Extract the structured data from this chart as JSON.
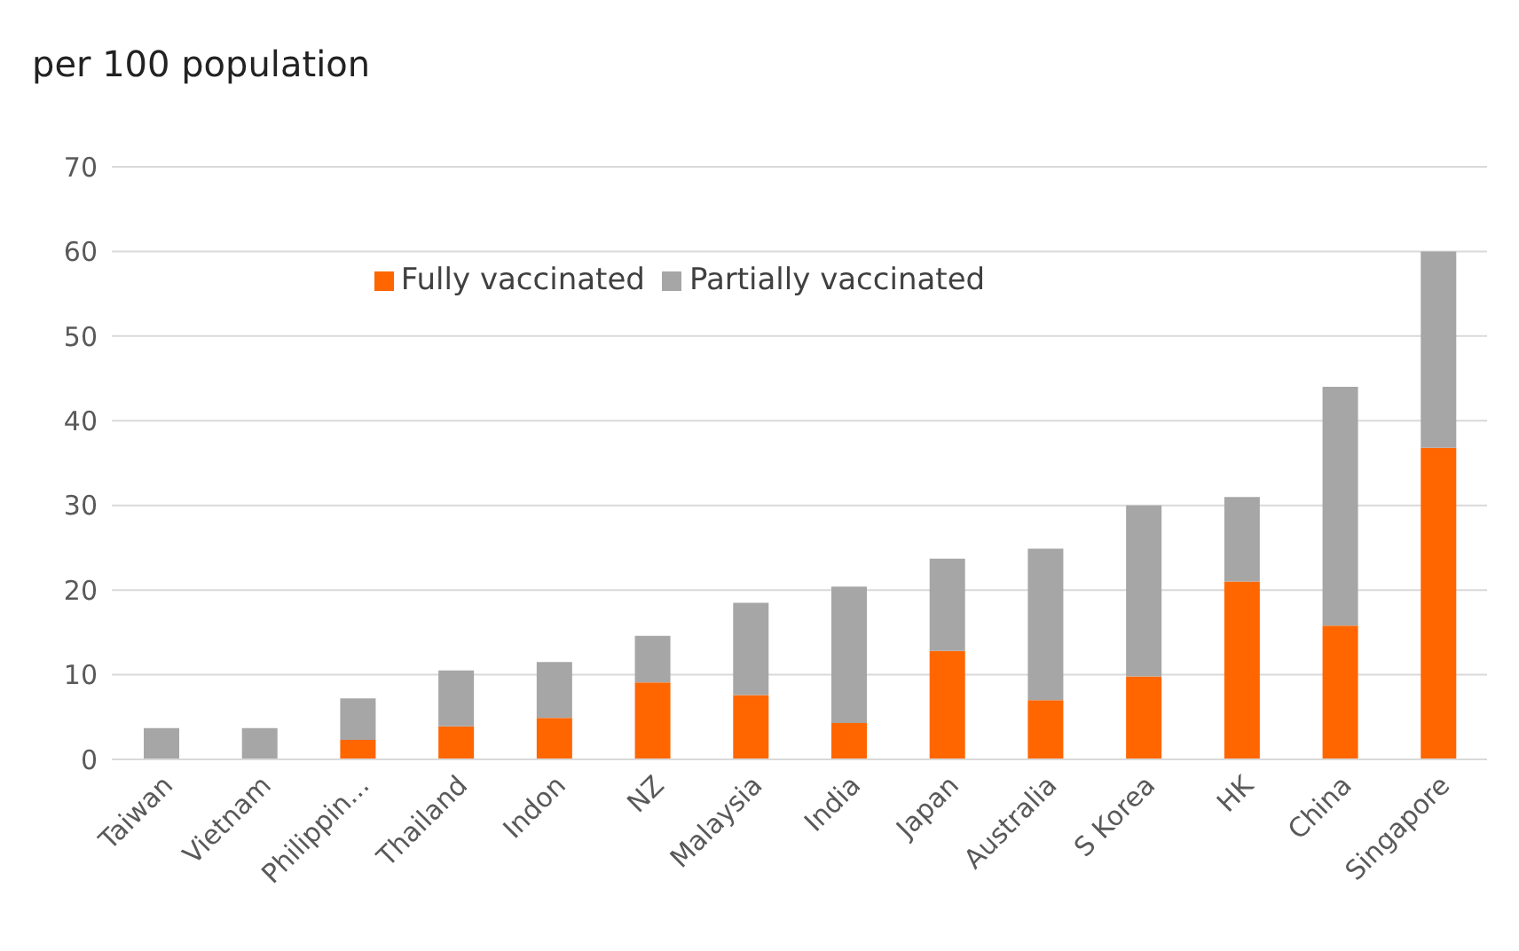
{
  "chart_data": {
    "type": "bar",
    "ylabel": "per 100 population",
    "categories": [
      "Taiwan",
      "Vietnam",
      "Philippin...",
      "Thailand",
      "Indon",
      "NZ",
      "Malaysia",
      "India",
      "Japan",
      "Australia",
      "S Korea",
      "HK",
      "China",
      "Singapore"
    ],
    "series": [
      {
        "name": "Fully vaccinated",
        "color": "#ff6600",
        "values": [
          0,
          0,
          2.3,
          3.9,
          4.9,
          9.1,
          7.6,
          4.3,
          12.8,
          7,
          9.8,
          21,
          15.8,
          36.8
        ]
      },
      {
        "name": "Partially vaccinated",
        "color": "#a6a6a6",
        "values": [
          3.7,
          3.7,
          4.9,
          6.6,
          6.6,
          5.5,
          10.9,
          16.1,
          10.9,
          17.9,
          20.2,
          10,
          28.2,
          23.2
        ]
      }
    ],
    "stacked": true,
    "ylim": [
      0,
      70
    ],
    "yticks": [
      0,
      10,
      20,
      30,
      40,
      50,
      60,
      70
    ],
    "grid": "y",
    "legend": "top"
  }
}
